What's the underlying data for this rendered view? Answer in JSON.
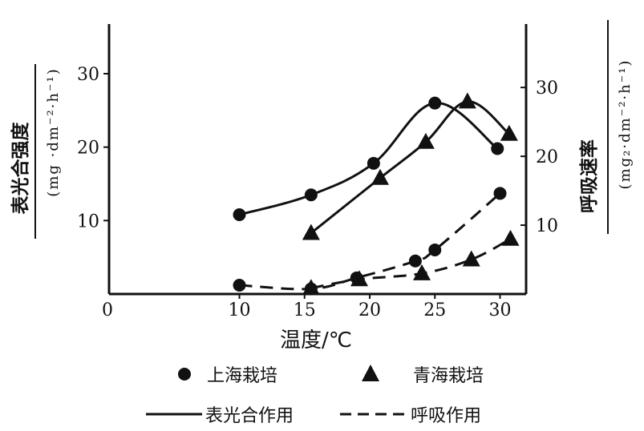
{
  "chart_data": {
    "type": "line",
    "x": {
      "label": "温度/℃",
      "range": [
        0,
        32
      ],
      "ticks": [
        0,
        10,
        15,
        20,
        25,
        30
      ]
    },
    "y_left": {
      "title": "表光合强度",
      "unit": "(mg ·dm⁻²·h⁻¹)",
      "range": [
        0,
        30
      ],
      "ticks": [
        10,
        20,
        30
      ]
    },
    "y_right": {
      "title": "呼吸速率",
      "unit": "(mg₂·dm⁻²·h⁻¹)",
      "range": [
        0,
        32
      ],
      "ticks": [
        10,
        20,
        30
      ]
    },
    "legend": {
      "shanghai": "上海栽培",
      "qinghai": "青海栽培",
      "photosynthesis": "表光合作用",
      "respiration": "呼吸作用"
    },
    "series": [
      {
        "name": "上海栽培 表光合作用",
        "axis": "left",
        "marker": "circle",
        "style": "solid",
        "points": [
          [
            10,
            10.8
          ],
          [
            15.5,
            13.5
          ],
          [
            20.3,
            17.8
          ],
          [
            25,
            26
          ],
          [
            29.8,
            19.8
          ]
        ]
      },
      {
        "name": "青海栽培 表光合作用",
        "axis": "left",
        "marker": "triangle",
        "style": "solid",
        "points": [
          [
            15.5,
            8.3
          ],
          [
            20.8,
            15.8
          ],
          [
            24.3,
            20.7
          ],
          [
            27.5,
            26.2
          ],
          [
            30.7,
            21.8
          ]
        ]
      },
      {
        "name": "上海栽培 呼吸作用",
        "axis": "left",
        "marker": "circle",
        "style": "dashed",
        "points": [
          [
            10,
            1.2
          ],
          [
            15.5,
            0.7
          ],
          [
            19,
            2.2
          ],
          [
            23.5,
            4.5
          ],
          [
            25,
            6
          ],
          [
            30,
            13.7
          ]
        ]
      },
      {
        "name": "青海栽培 呼吸作用",
        "axis": "left",
        "marker": "triangle",
        "style": "dashed",
        "points": [
          [
            15.5,
            0.8
          ],
          [
            19.2,
            2.0
          ],
          [
            24,
            2.8
          ],
          [
            27.8,
            4.7
          ],
          [
            30.8,
            7.5
          ]
        ]
      }
    ]
  }
}
